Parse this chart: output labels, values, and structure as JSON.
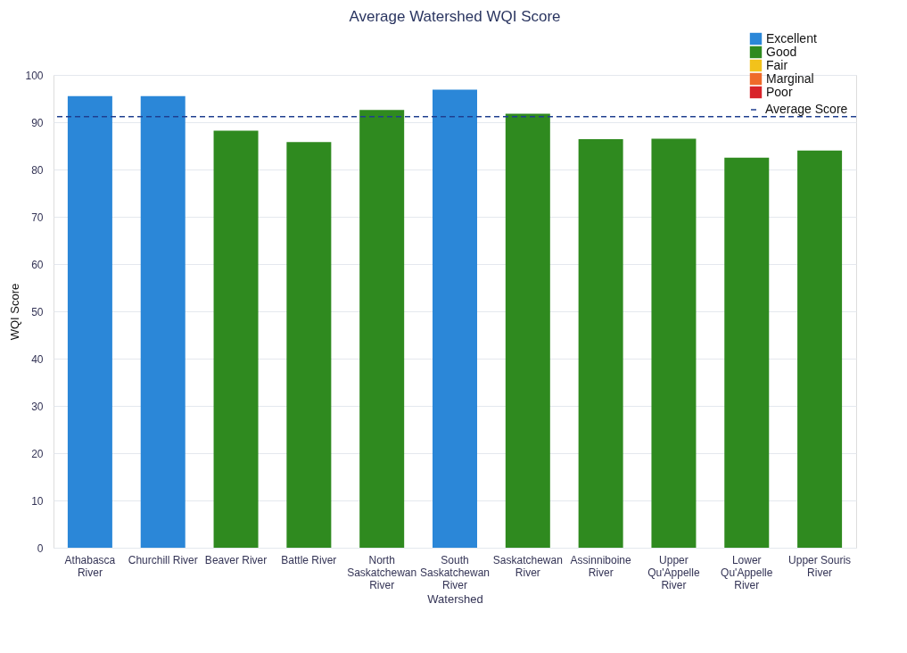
{
  "chart_data": {
    "type": "bar",
    "title": "Average Watershed WQI Score",
    "xlabel": "Watershed",
    "ylabel": "WQI Score",
    "categories": [
      "Athabasca\nRiver",
      "Churchill River",
      "Beaver River",
      "Battle River",
      "North\nSaskatchewan\nRiver",
      "South\nSaskatchewan\nRiver",
      "Saskatchewan\nRiver",
      "Assinniboine\nRiver",
      "Upper\nQu'Appelle\nRiver",
      "Lower\nQu'Appelle\nRiver",
      "Upper Souris\nRiver"
    ],
    "series": [
      {
        "name": "Excellent",
        "color": "#2b87d8",
        "values": [
          95.5,
          95.5,
          null,
          null,
          null,
          96.9,
          null,
          null,
          null,
          null,
          null
        ]
      },
      {
        "name": "Good",
        "color": "#2f8a1f",
        "values": [
          null,
          null,
          88.2,
          85.8,
          92.6,
          null,
          91.8,
          86.4,
          86.5,
          82.5,
          84.0
        ]
      },
      {
        "name": "Fair",
        "color": "#f2c21b",
        "values": [
          null,
          null,
          null,
          null,
          null,
          null,
          null,
          null,
          null,
          null,
          null
        ]
      },
      {
        "name": "Marginal",
        "color": "#ef6a2a",
        "values": [
          null,
          null,
          null,
          null,
          null,
          null,
          null,
          null,
          null,
          null,
          null
        ]
      },
      {
        "name": "Poor",
        "color": "#d8232a",
        "values": [
          null,
          null,
          null,
          null,
          null,
          null,
          null,
          null,
          null,
          null,
          null
        ]
      }
    ],
    "ref_lines": [
      {
        "axis": "y",
        "value": 91.2,
        "label": "Average Score",
        "color": "#1f3f8f",
        "line_style": "dashed"
      }
    ],
    "ylim": [
      0,
      100
    ],
    "yticks": [
      0,
      10,
      20,
      30,
      40,
      50,
      60,
      70,
      80,
      90,
      100
    ],
    "grid": "y",
    "legend": "top right"
  }
}
